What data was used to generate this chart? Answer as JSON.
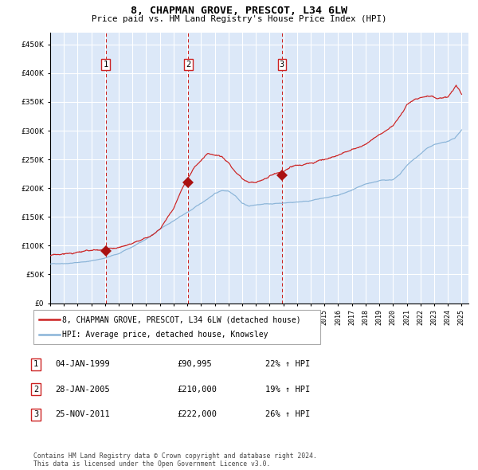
{
  "title": "8, CHAPMAN GROVE, PRESCOT, L34 6LW",
  "subtitle": "Price paid vs. HM Land Registry's House Price Index (HPI)",
  "background_color": "#dde8f5",
  "plot_bg_color": "#dce8f8",
  "hpi_color": "#8ab4d8",
  "price_color": "#cc2222",
  "marker_color": "#aa1111",
  "vline_color": "#cc2222",
  "grid_color": "#ffffff",
  "ylim": [
    0,
    470000
  ],
  "yticks": [
    0,
    50000,
    100000,
    150000,
    200000,
    250000,
    300000,
    350000,
    400000,
    450000
  ],
  "sales": [
    {
      "label": "1",
      "date_num": 1999.04,
      "price": 90995,
      "date_str": "04-JAN-1999"
    },
    {
      "label": "2",
      "date_num": 2005.07,
      "price": 210000,
      "date_str": "28-JAN-2005"
    },
    {
      "label": "3",
      "date_num": 2011.9,
      "price": 222000,
      "date_str": "25-NOV-2011"
    }
  ],
  "legend_line1": "8, CHAPMAN GROVE, PRESCOT, L34 6LW (detached house)",
  "legend_line2": "HPI: Average price, detached house, Knowsley",
  "table_rows": [
    {
      "num": "1",
      "date": "04-JAN-1999",
      "price": "£90,995",
      "pct": "22% ↑ HPI"
    },
    {
      "num": "2",
      "date": "28-JAN-2005",
      "price": "£210,000",
      "pct": "19% ↑ HPI"
    },
    {
      "num": "3",
      "date": "25-NOV-2011",
      "price": "£222,000",
      "pct": "26% ↑ HPI"
    }
  ],
  "footnote": "Contains HM Land Registry data © Crown copyright and database right 2024.\nThis data is licensed under the Open Government Licence v3.0."
}
